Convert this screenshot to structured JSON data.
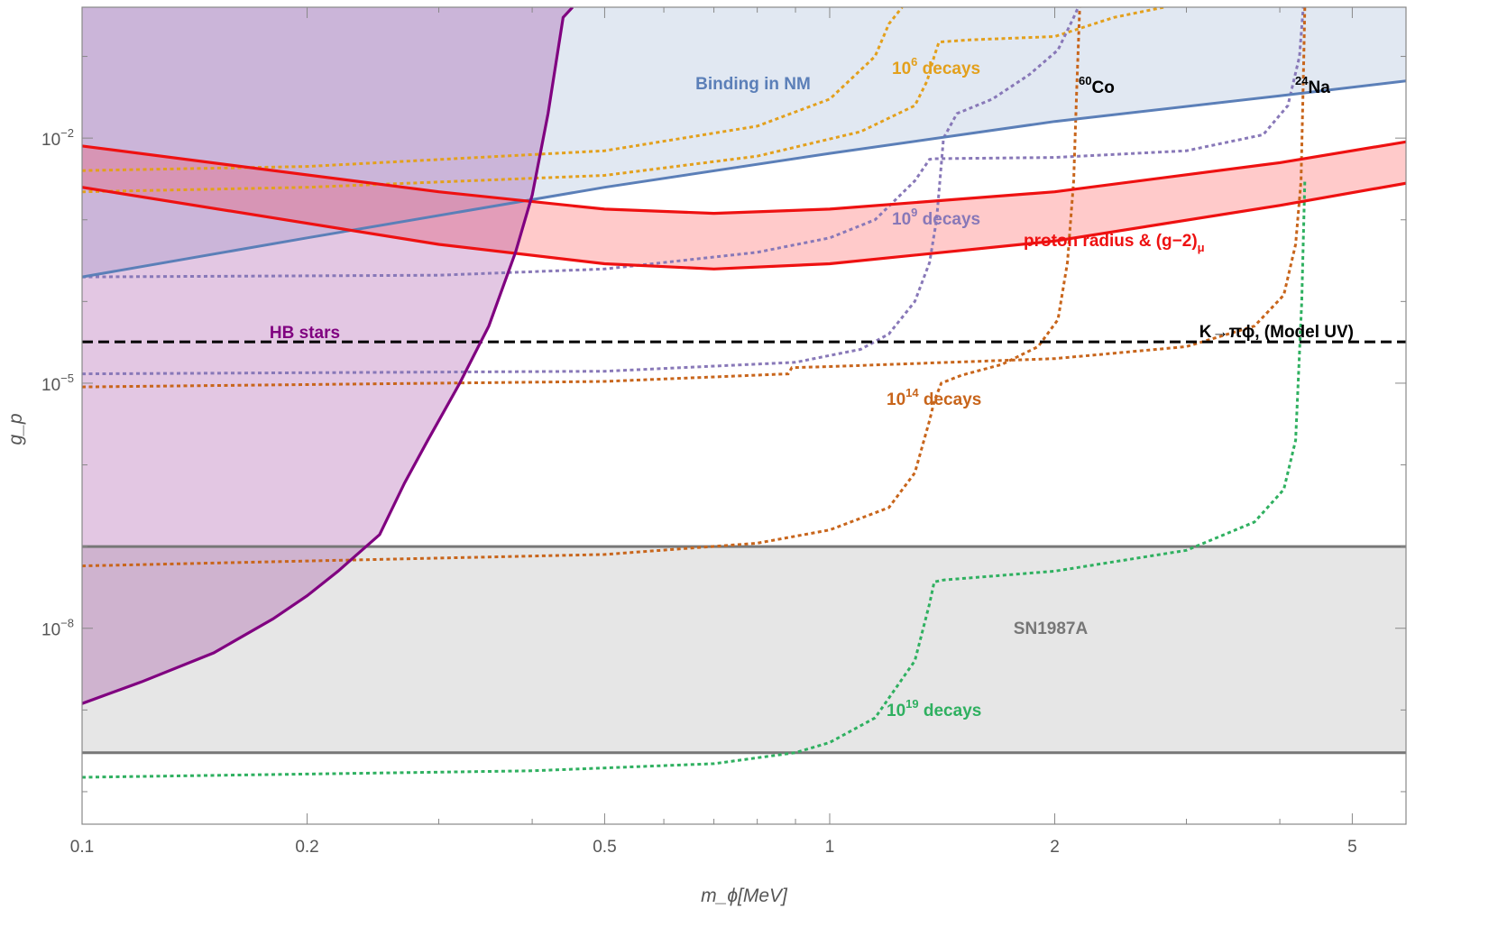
{
  "chart_data": {
    "type": "line",
    "title": "",
    "xlabel": "m_ϕ[MeV]",
    "ylabel": "g_p",
    "xscale": "log",
    "yscale": "log",
    "xlim": [
      0.1,
      5.9
    ],
    "ylim": [
      4e-11,
      0.4
    ],
    "x_ticks": [
      {
        "value": 0.1,
        "label": "0.1"
      },
      {
        "value": 0.2,
        "label": "0.2"
      },
      {
        "value": 0.5,
        "label": "0.5"
      },
      {
        "value": 1,
        "label": "1"
      },
      {
        "value": 2,
        "label": "2"
      },
      {
        "value": 5,
        "label": "5"
      }
    ],
    "y_ticks": [
      {
        "value": 0.01,
        "base": "10",
        "exp": "−2"
      },
      {
        "value": 1e-05,
        "base": "10",
        "exp": "−5"
      },
      {
        "value": 1e-08,
        "base": "10",
        "exp": "−8"
      }
    ],
    "colors": {
      "hb": "#800080",
      "hb_fill": "rgba(128,0,128,0.22)",
      "nm": "#5b7fb8",
      "nm_fill": "rgba(91,127,184,0.18)",
      "proton": "#ee1111",
      "proton_fill": "rgba(255,150,150,0.5)",
      "kaon": "#000000",
      "sn": "#777777",
      "sn_fill": "#e6e6e6",
      "d6": "#e3a01c",
      "d9": "#8878b8",
      "d14": "#c8651b",
      "d19": "#2fb060",
      "co_label": "#000000",
      "na_label": "#000000"
    },
    "regions": {
      "hb_stars": {
        "label": "HB stars",
        "boundary": [
          [
            0.1,
            1.2e-09
          ],
          [
            0.12,
            2.2e-09
          ],
          [
            0.15,
            5e-09
          ],
          [
            0.18,
            1.3e-08
          ],
          [
            0.2,
            2.5e-08
          ],
          [
            0.22,
            5e-08
          ],
          [
            0.25,
            1.4e-07
          ],
          [
            0.27,
            6e-07
          ],
          [
            0.29,
            2e-06
          ],
          [
            0.32,
            1e-05
          ],
          [
            0.35,
            5e-05
          ],
          [
            0.38,
            0.0004
          ],
          [
            0.4,
            0.002
          ],
          [
            0.42,
            0.02
          ],
          [
            0.44,
            0.3
          ],
          [
            0.453,
            0.4
          ]
        ]
      },
      "binding_nm": {
        "label": "Binding in NM",
        "boundary": [
          [
            0.1,
            0.0002
          ],
          [
            0.2,
            0.0006
          ],
          [
            0.5,
            0.0025
          ],
          [
            1,
            0.0065
          ],
          [
            2,
            0.016
          ],
          [
            4,
            0.033
          ],
          [
            5.9,
            0.05
          ]
        ]
      },
      "proton_radius": {
        "label": "proton radius & (g−2)",
        "label_sub": "μ",
        "upper": [
          [
            0.1,
            0.008
          ],
          [
            0.3,
            0.0022
          ],
          [
            0.5,
            0.00135
          ],
          [
            0.7,
            0.0012
          ],
          [
            1,
            0.00135
          ],
          [
            2,
            0.0022
          ],
          [
            4,
            0.005
          ],
          [
            5.9,
            0.009
          ]
        ],
        "lower": [
          [
            0.1,
            0.0025
          ],
          [
            0.3,
            0.0005
          ],
          [
            0.5,
            0.00029
          ],
          [
            0.7,
            0.00025
          ],
          [
            1,
            0.00029
          ],
          [
            2,
            0.00055
          ],
          [
            4,
            0.0015
          ],
          [
            5.9,
            0.0028
          ]
        ]
      },
      "sn1987a": {
        "label": "SN1987A",
        "y_range": [
          3e-10,
          1e-07
        ]
      }
    },
    "series": [
      {
        "name": "K→πϕ, (Model UV)",
        "style": "dashed",
        "points": [
          [
            0.1,
            3.2e-05
          ],
          [
            5.9,
            3.2e-05
          ]
        ]
      },
      {
        "name": "10^6 decays",
        "label_base": "10",
        "label_exp": "6",
        "label_tail": " decays",
        "style": "dotted",
        "curves": [
          [
            [
              0.1,
              0.0022
            ],
            [
              0.2,
              0.0025
            ],
            [
              0.5,
              0.0035
            ],
            [
              0.8,
              0.006
            ],
            [
              1.1,
              0.012
            ],
            [
              1.3,
              0.025
            ],
            [
              1.35,
              0.05
            ],
            [
              1.38,
              0.1
            ],
            [
              1.4,
              0.15
            ],
            [
              1.55,
              0.16
            ],
            [
              2,
              0.175
            ],
            [
              2.4,
              0.3
            ],
            [
              2.8,
              0.4
            ]
          ],
          [
            [
              0.1,
              0.004
            ],
            [
              0.2,
              0.0045
            ],
            [
              0.5,
              0.007
            ],
            [
              0.8,
              0.014
            ],
            [
              1.0,
              0.03
            ],
            [
              1.15,
              0.1
            ],
            [
              1.2,
              0.25
            ],
            [
              1.25,
              0.4
            ]
          ]
        ]
      },
      {
        "name": "10^9 decays",
        "label_base": "10",
        "label_exp": "9",
        "label_tail": " decays",
        "style": "dotted",
        "curves": [
          [
            [
              0.1,
              0.0002
            ],
            [
              0.3,
              0.00021
            ],
            [
              0.5,
              0.00025
            ],
            [
              0.8,
              0.0004
            ],
            [
              1.0,
              0.0006
            ],
            [
              1.15,
              0.001
            ],
            [
              1.3,
              0.003
            ],
            [
              1.36,
              0.0055
            ],
            [
              1.38,
              0.0056
            ],
            [
              2,
              0.0058
            ],
            [
              3,
              0.007
            ],
            [
              3.8,
              0.011
            ],
            [
              4.1,
              0.025
            ],
            [
              4.25,
              0.1
            ],
            [
              4.3,
              0.4
            ]
          ],
          [
            [
              0.1,
              1.3e-05
            ],
            [
              0.5,
              1.4e-05
            ],
            [
              0.9,
              1.8e-05
            ],
            [
              1.1,
              2.6e-05
            ],
            [
              1.2,
              4e-05
            ],
            [
              1.3,
              0.0001
            ],
            [
              1.36,
              0.0003
            ],
            [
              1.39,
              0.001
            ],
            [
              1.42,
              0.01
            ],
            [
              1.48,
              0.02
            ],
            [
              1.65,
              0.03
            ],
            [
              1.85,
              0.06
            ],
            [
              2.02,
              0.12
            ],
            [
              2.12,
              0.3
            ],
            [
              2.15,
              0.4
            ]
          ]
        ]
      },
      {
        "name": "10^14 decays",
        "label_base": "10",
        "label_exp": "14",
        "label_tail": " decays",
        "style": "dotted",
        "curves": [
          [
            [
              0.1,
              9e-06
            ],
            [
              0.5,
              1.05e-05
            ],
            [
              0.88,
              1.3e-05
            ],
            [
              0.89,
              1.55e-05
            ],
            [
              1,
              1.6e-05
            ],
            [
              2,
              2e-05
            ],
            [
              3,
              2.8e-05
            ],
            [
              3.7,
              5e-05
            ],
            [
              4.05,
              0.00012
            ],
            [
              4.2,
              0.0005
            ],
            [
              4.27,
              0.003
            ],
            [
              4.3,
              0.05
            ],
            [
              4.32,
              0.4
            ]
          ],
          [
            [
              0.1,
              5.8e-08
            ],
            [
              0.5,
              8e-08
            ],
            [
              0.8,
              1.1e-07
            ],
            [
              1.0,
              1.6e-07
            ],
            [
              1.2,
              3e-07
            ],
            [
              1.3,
              8e-07
            ],
            [
              1.36,
              3.5e-06
            ],
            [
              1.38,
              6e-06
            ],
            [
              1.41,
              1e-05
            ],
            [
              1.5,
              1.25e-05
            ],
            [
              1.7,
              1.7e-05
            ],
            [
              1.9,
              2.8e-05
            ],
            [
              2.02,
              6e-05
            ],
            [
              2.08,
              0.0003
            ],
            [
              2.12,
              0.003
            ],
            [
              2.14,
              0.04
            ],
            [
              2.16,
              0.4
            ]
          ]
        ]
      },
      {
        "name": "10^19 decays",
        "label_base": "10",
        "label_exp": "19",
        "label_tail": " decays",
        "style": "dotted",
        "curves": [
          [
            [
              0.1,
              1.5e-10
            ],
            [
              0.4,
              1.8e-10
            ],
            [
              0.7,
              2.2e-10
            ],
            [
              0.9,
              3e-10
            ],
            [
              1.0,
              4e-10
            ],
            [
              1.15,
              8e-10
            ],
            [
              1.3,
              4e-09
            ],
            [
              1.36,
              2e-08
            ],
            [
              1.38,
              3.7e-08
            ],
            [
              1.42,
              3.9e-08
            ],
            [
              2,
              5e-08
            ],
            [
              3,
              9e-08
            ],
            [
              3.7,
              2e-07
            ],
            [
              4.05,
              5e-07
            ],
            [
              4.2,
              2e-06
            ],
            [
              4.28,
              0.0001
            ],
            [
              4.32,
              0.003
            ]
          ]
        ]
      }
    ],
    "annotations": {
      "co60": {
        "mass": "60",
        "element": "Co"
      },
      "na24": {
        "mass": "24",
        "element": "Na"
      }
    }
  }
}
